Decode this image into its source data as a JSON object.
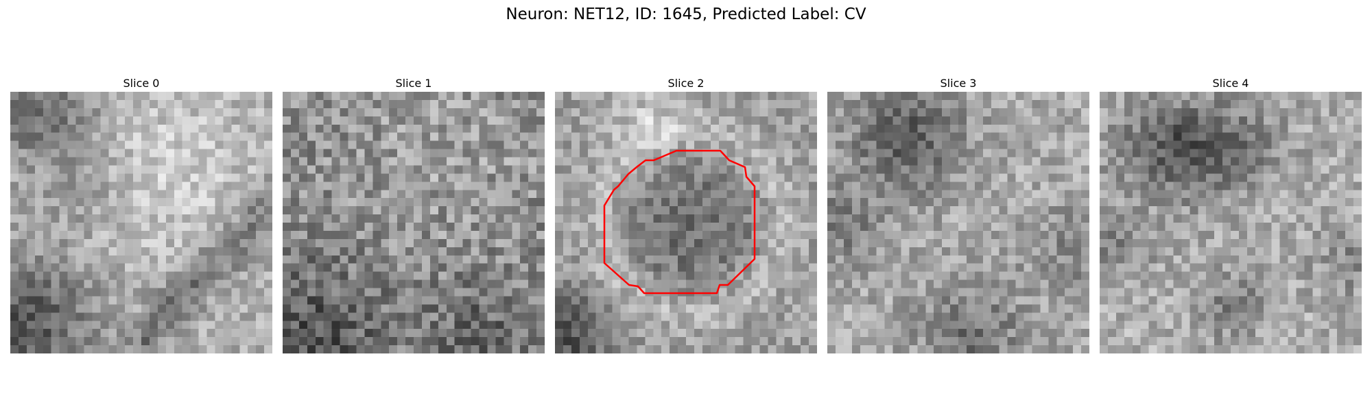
{
  "suptitle": "Neuron: NET12, ID: 1645, Predicted Label: CV",
  "panels": [
    {
      "title": "Slice 0"
    },
    {
      "title": "Slice 1"
    },
    {
      "title": "Slice 2"
    },
    {
      "title": "Slice 3"
    },
    {
      "title": "Slice 4"
    }
  ],
  "image": {
    "colormap": "gray",
    "grid_size": 32,
    "outline_slice": 2,
    "outline_color": "#ff0000"
  }
}
